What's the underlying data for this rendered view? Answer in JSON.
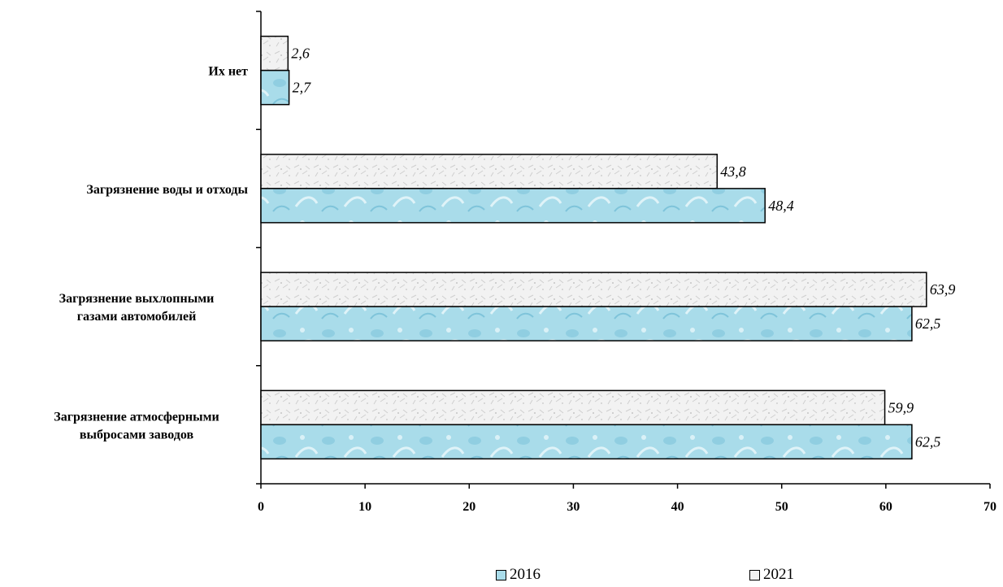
{
  "chart_data": {
    "type": "bar",
    "orientation": "horizontal",
    "categories": [
      [
        "Загрязнение атмосферными",
        "выбросами заводов"
      ],
      [
        "Загрязнение выхлопными",
        "газами автомобилей"
      ],
      [
        "Загрязнение воды и отходы"
      ],
      [
        "Их нет"
      ]
    ],
    "series": [
      {
        "name": "2016",
        "values": [
          62.5,
          62.5,
          48.4,
          2.7
        ],
        "labels": [
          "62,5",
          "62,5",
          "48,4",
          "2,7"
        ],
        "color": "#a9dcea"
      },
      {
        "name": "2021",
        "values": [
          59.9,
          63.9,
          43.8,
          2.6
        ],
        "labels": [
          "59,9",
          "63,9",
          "43,8",
          "2,6"
        ],
        "color": "#f2f2f2"
      }
    ],
    "xlim": [
      0,
      70
    ],
    "xticks": [
      "0",
      "10",
      "20",
      "30",
      "40",
      "50",
      "60",
      "70"
    ],
    "grid": false,
    "legend_position": "bottom"
  }
}
